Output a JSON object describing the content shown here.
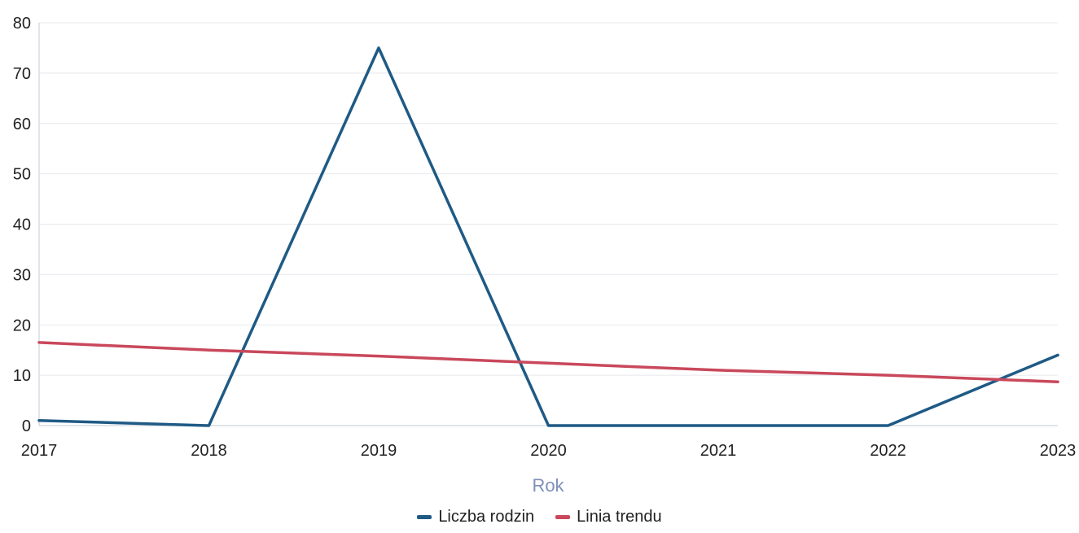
{
  "chart_data": {
    "type": "line",
    "x": [
      "2017",
      "2018",
      "2019",
      "2020",
      "2021",
      "2022",
      "2023"
    ],
    "series": [
      {
        "name": "Liczba rodzin",
        "values": [
          1,
          0,
          75,
          0,
          0,
          0,
          14
        ],
        "color": "#1f5a85"
      },
      {
        "name": "Linia trendu",
        "values": [
          16.5,
          15,
          13.8,
          12.4,
          11,
          10,
          8.7
        ],
        "color": "#c9485b"
      }
    ],
    "xlabel": "Rok",
    "ylabel": "",
    "ylim": [
      0,
      80
    ],
    "yticks": [
      0,
      10,
      20,
      30,
      40,
      50,
      60,
      70,
      80
    ],
    "grid": true,
    "legend": "bottom-center"
  }
}
